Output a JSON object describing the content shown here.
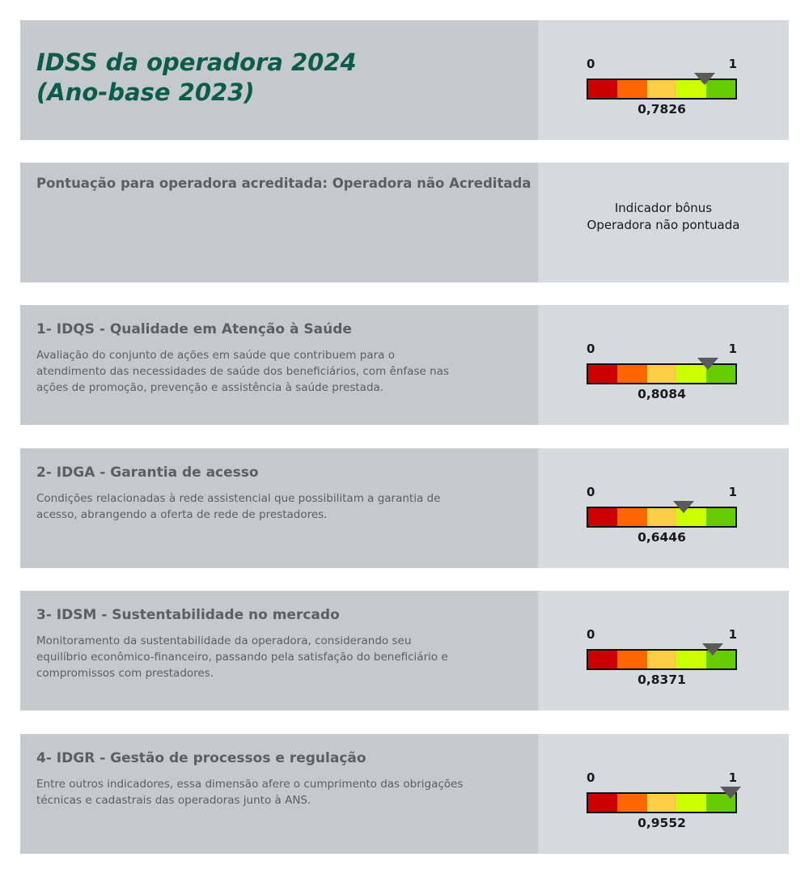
{
  "header": {
    "title": "IDSS da operadora 2024\n(Ano-base 2023)",
    "score": "0,7826",
    "score_fraction": 0.7826
  },
  "gauge": {
    "min_label": "0",
    "max_label": "1",
    "colors": [
      "#cc0000",
      "#ff6600",
      "#ffcc44",
      "#ccff00",
      "#66cc00"
    ]
  },
  "accreditation": {
    "label": "Pontuação para operadora acreditada: Operadora não Acreditada",
    "bonus_line1": "Indicador bônus",
    "bonus_line2": "Operadora não pontuada"
  },
  "dimensions": [
    {
      "title": "1- IDQS - Qualidade em Atenção à Saúde",
      "description": "Avaliação do conjunto de ações em saúde que contribuem para o atendimento das necessidades de saúde dos beneficiários, com ênfase nas ações de promoção, prevenção e assistência à saúde prestada.",
      "score": "0,8084",
      "score_fraction": 0.8084
    },
    {
      "title": "2- IDGA - Garantia de acesso",
      "description": "Condições relacionadas à rede assistencial que possibilitam a garantia de acesso, abrangendo a oferta de rede de prestadores.",
      "score": "0,6446",
      "score_fraction": 0.6446
    },
    {
      "title": "3- IDSM - Sustentabilidade no mercado",
      "description": "Monitoramento da sustentabilidade da operadora, considerando seu equilíbrio econômico-financeiro, passando pela satisfação do beneficiário e compromissos com prestadores.",
      "score": "0,8371",
      "score_fraction": 0.8371
    },
    {
      "title": "4- IDGR - Gestão de processos e regulação",
      "description": "Entre outros indicadores, essa dimensão afere o cumprimento das obrigações técnicas e cadastrais das operadoras junto à ANS.",
      "score": "0,9552",
      "score_fraction": 0.9552
    }
  ]
}
